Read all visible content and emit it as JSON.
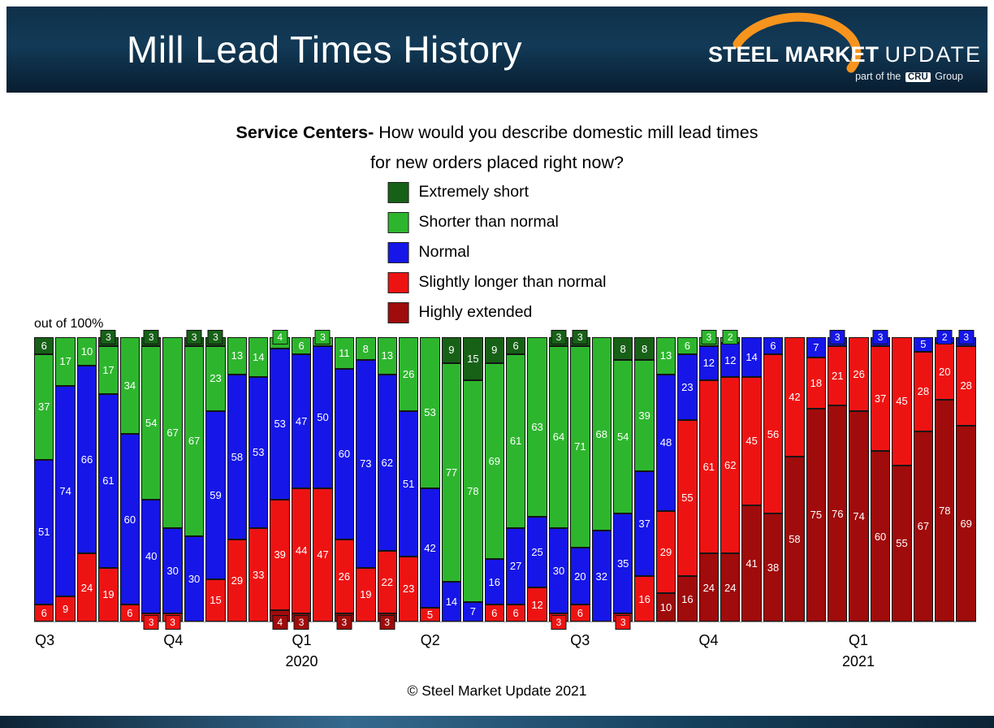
{
  "header": {
    "title": "Mill Lead Times History",
    "logo": {
      "steel": "STEEL",
      "market": "MARKET",
      "update": "UPDATE",
      "tagline_prefix": "part of the",
      "tagline_cru": "CRU",
      "tagline_suffix": "Group"
    }
  },
  "subtitle": {
    "lead": "Service Centers-",
    "line1": " How would you describe domestic mill lead times",
    "line2": "for new orders placed right now?"
  },
  "chart_note": "out of 100%",
  "footer_credit": "© Steel Market Update 2021",
  "chart_data": {
    "type": "bar",
    "stacked": true,
    "unit": "%",
    "ylim": [
      0,
      100
    ],
    "title": "Mill Lead Times History",
    "legend_position": "top-center",
    "label_inside_min": 5,
    "x_ticks": [
      {
        "bar": 0,
        "label": "Q3",
        "sub": ""
      },
      {
        "bar": 6,
        "label": "Q4",
        "sub": ""
      },
      {
        "bar": 12,
        "label": "Q1",
        "sub": "2020"
      },
      {
        "bar": 18,
        "label": "Q2",
        "sub": ""
      },
      {
        "bar": 25,
        "label": "Q3",
        "sub": ""
      },
      {
        "bar": 31,
        "label": "Q4",
        "sub": ""
      },
      {
        "bar": 38,
        "label": "Q1",
        "sub": "2021"
      }
    ],
    "series": [
      {
        "name": "Extremely short",
        "color": "#176117",
        "values": [
          6,
          0,
          0,
          3,
          0,
          3,
          0,
          3,
          3,
          0,
          0,
          0,
          0,
          0,
          0,
          0,
          0,
          0,
          0,
          9,
          15,
          9,
          6,
          0,
          3,
          3,
          0,
          8,
          8,
          0,
          0,
          0,
          0,
          0,
          0,
          0,
          0,
          0,
          0,
          0,
          0,
          0,
          0,
          0
        ]
      },
      {
        "name": "Shorter than normal",
        "color": "#2db62d",
        "values": [
          37,
          17,
          10,
          17,
          34,
          54,
          67,
          67,
          23,
          13,
          14,
          4,
          6,
          3,
          11,
          8,
          13,
          26,
          53,
          77,
          78,
          69,
          61,
          63,
          64,
          71,
          68,
          54,
          39,
          13,
          6,
          3,
          2,
          0,
          0,
          0,
          0,
          0,
          0,
          0,
          0,
          0,
          0,
          0
        ]
      },
      {
        "name": "Normal",
        "color": "#1616e8",
        "values": [
          51,
          74,
          66,
          61,
          60,
          40,
          30,
          30,
          59,
          58,
          53,
          53,
          47,
          50,
          60,
          73,
          62,
          51,
          42,
          14,
          7,
          16,
          27,
          25,
          30,
          20,
          32,
          35,
          37,
          48,
          23,
          12,
          12,
          14,
          6,
          0,
          7,
          3,
          0,
          3,
          0,
          5,
          2,
          3
        ]
      },
      {
        "name": "Slightly longer than normal",
        "color": "#ee1313",
        "values": [
          6,
          9,
          24,
          19,
          6,
          3,
          3,
          0,
          15,
          29,
          33,
          39,
          44,
          47,
          26,
          19,
          22,
          23,
          5,
          0,
          0,
          6,
          6,
          12,
          3,
          6,
          0,
          3,
          16,
          29,
          55,
          61,
          62,
          45,
          56,
          42,
          18,
          21,
          26,
          37,
          45,
          28,
          20,
          28
        ]
      },
      {
        "name": "Highly extended",
        "color": "#a00b0b",
        "values": [
          0,
          0,
          0,
          0,
          0,
          0,
          0,
          0,
          0,
          0,
          0,
          4,
          3,
          0,
          3,
          0,
          3,
          0,
          0,
          0,
          0,
          0,
          0,
          0,
          0,
          0,
          0,
          0,
          0,
          10,
          16,
          24,
          24,
          41,
          38,
          58,
          75,
          76,
          74,
          60,
          55,
          67,
          78,
          69
        ]
      }
    ]
  }
}
